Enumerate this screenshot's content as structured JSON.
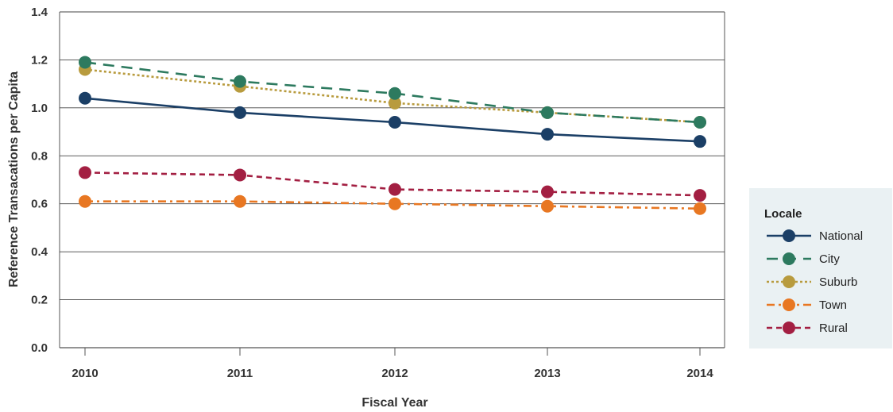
{
  "chart_data": {
    "type": "line",
    "xlabel": "Fiscal Year",
    "ylabel": "Reference Transacations per Capita",
    "categories": [
      "2010",
      "2011",
      "2012",
      "2013",
      "2014"
    ],
    "ylim": [
      0,
      1.4
    ],
    "yticks": [
      "0.0",
      "0.2",
      "0.4",
      "0.6",
      "0.8",
      "1.0",
      "1.2",
      "1.4"
    ],
    "grid": "horizontal",
    "legend": {
      "title": "Locale",
      "placement": "right"
    },
    "series": [
      {
        "name": "National",
        "values": [
          1.04,
          0.98,
          0.94,
          0.89,
          0.86
        ],
        "color": "#1b3f66",
        "dash": "solid"
      },
      {
        "name": "City",
        "values": [
          1.19,
          1.11,
          1.06,
          0.98,
          0.94
        ],
        "color": "#2d7a5f",
        "dash": "long-dash"
      },
      {
        "name": "Suburb",
        "values": [
          1.16,
          1.09,
          1.02,
          0.98,
          0.94
        ],
        "color": "#b89b3e",
        "dash": "dotted"
      },
      {
        "name": "Town",
        "values": [
          0.61,
          0.61,
          0.6,
          0.59,
          0.58
        ],
        "color": "#e87722",
        "dash": "dash-dot"
      },
      {
        "name": "Rural",
        "values": [
          0.73,
          0.72,
          0.66,
          0.65,
          0.635
        ],
        "color": "#a31f42",
        "dash": "short-dash"
      }
    ]
  }
}
